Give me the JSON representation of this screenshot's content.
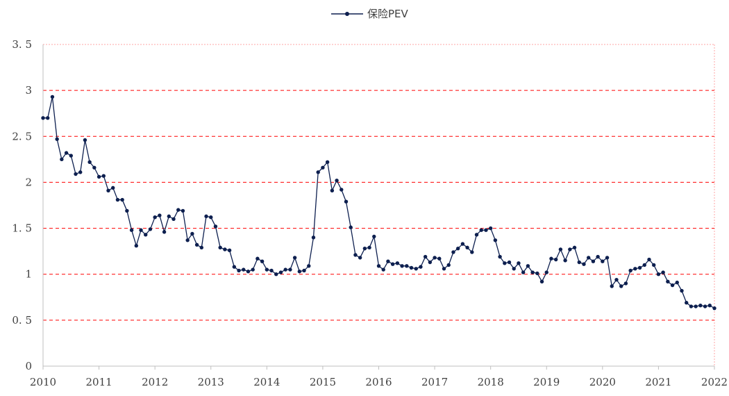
{
  "chart_data": {
    "type": "line",
    "title": "",
    "xlabel": "",
    "ylabel": "",
    "ylim": [
      0,
      3.5
    ],
    "xlim": [
      "2010-01",
      "2022-01"
    ],
    "y_ticks": [
      "0",
      "0. 5",
      "1",
      "1. 5",
      "2",
      "2. 5",
      "3",
      "3. 5"
    ],
    "x_ticks": [
      "2010",
      "2011",
      "2012",
      "2013",
      "2014",
      "2015",
      "2016",
      "2017",
      "2018",
      "2019",
      "2020",
      "2021",
      "2022"
    ],
    "grid": "horizontal dashed",
    "legend_position": "top-center",
    "colors": {
      "series": "#0d1f4f",
      "grid": "#ff0000",
      "axis": "#bfbfbf"
    },
    "series": [
      {
        "name": "保险PEV",
        "x": [
          "2010-01",
          "2010-02",
          "2010-03",
          "2010-04",
          "2010-05",
          "2010-06",
          "2010-07",
          "2010-08",
          "2010-09",
          "2010-10",
          "2010-11",
          "2010-12",
          "2011-01",
          "2011-02",
          "2011-03",
          "2011-04",
          "2011-05",
          "2011-06",
          "2011-07",
          "2011-08",
          "2011-09",
          "2011-10",
          "2011-11",
          "2011-12",
          "2012-01",
          "2012-02",
          "2012-03",
          "2012-04",
          "2012-05",
          "2012-06",
          "2012-07",
          "2012-08",
          "2012-09",
          "2012-10",
          "2012-11",
          "2012-12",
          "2013-01",
          "2013-02",
          "2013-03",
          "2013-04",
          "2013-05",
          "2013-06",
          "2013-07",
          "2013-08",
          "2013-09",
          "2013-10",
          "2013-11",
          "2013-12",
          "2014-01",
          "2014-02",
          "2014-03",
          "2014-04",
          "2014-05",
          "2014-06",
          "2014-07",
          "2014-08",
          "2014-09",
          "2014-10",
          "2014-11",
          "2014-12",
          "2015-01",
          "2015-02",
          "2015-03",
          "2015-04",
          "2015-05",
          "2015-06",
          "2015-07",
          "2015-08",
          "2015-09",
          "2015-10",
          "2015-11",
          "2015-12",
          "2016-01",
          "2016-02",
          "2016-03",
          "2016-04",
          "2016-05",
          "2016-06",
          "2016-07",
          "2016-08",
          "2016-09",
          "2016-10",
          "2016-11",
          "2016-12",
          "2017-01",
          "2017-02",
          "2017-03",
          "2017-04",
          "2017-05",
          "2017-06",
          "2017-07",
          "2017-08",
          "2017-09",
          "2017-10",
          "2017-11",
          "2017-12",
          "2018-01",
          "2018-02",
          "2018-03",
          "2018-04",
          "2018-05",
          "2018-06",
          "2018-07",
          "2018-08",
          "2018-09",
          "2018-10",
          "2018-11",
          "2018-12",
          "2019-01",
          "2019-02",
          "2019-03",
          "2019-04",
          "2019-05",
          "2019-06",
          "2019-07",
          "2019-08",
          "2019-09",
          "2019-10",
          "2019-11",
          "2019-12",
          "2020-01",
          "2020-02",
          "2020-03",
          "2020-04",
          "2020-05",
          "2020-06",
          "2020-07",
          "2020-08",
          "2020-09",
          "2020-10",
          "2020-11",
          "2020-12",
          "2021-01",
          "2021-02",
          "2021-03",
          "2021-04",
          "2021-05",
          "2021-06",
          "2021-07",
          "2021-08",
          "2021-09",
          "2021-10",
          "2021-11",
          "2021-12",
          "2022-01"
        ],
        "values": [
          2.7,
          2.7,
          2.93,
          2.47,
          2.25,
          2.32,
          2.29,
          2.09,
          2.11,
          2.46,
          2.22,
          2.16,
          2.06,
          2.07,
          1.91,
          1.94,
          1.81,
          1.81,
          1.69,
          1.48,
          1.31,
          1.48,
          1.43,
          1.49,
          1.62,
          1.64,
          1.46,
          1.63,
          1.6,
          1.7,
          1.69,
          1.37,
          1.44,
          1.32,
          1.29,
          1.63,
          1.62,
          1.52,
          1.29,
          1.27,
          1.26,
          1.08,
          1.04,
          1.05,
          1.03,
          1.05,
          1.17,
          1.14,
          1.05,
          1.04,
          1.0,
          1.02,
          1.05,
          1.05,
          1.18,
          1.03,
          1.04,
          1.09,
          1.4,
          2.11,
          2.16,
          2.22,
          1.91,
          2.02,
          1.92,
          1.79,
          1.51,
          1.21,
          1.18,
          1.28,
          1.29,
          1.41,
          1.09,
          1.05,
          1.14,
          1.11,
          1.12,
          1.09,
          1.09,
          1.07,
          1.06,
          1.08,
          1.19,
          1.13,
          1.18,
          1.17,
          1.06,
          1.1,
          1.24,
          1.28,
          1.33,
          1.29,
          1.24,
          1.43,
          1.48,
          1.48,
          1.5,
          1.37,
          1.19,
          1.12,
          1.13,
          1.06,
          1.12,
          1.02,
          1.09,
          1.02,
          1.01,
          0.92,
          1.02,
          1.17,
          1.16,
          1.27,
          1.15,
          1.27,
          1.29,
          1.13,
          1.11,
          1.18,
          1.14,
          1.19,
          1.14,
          1.18,
          0.87,
          0.94,
          0.87,
          0.9,
          1.04,
          1.06,
          1.07,
          1.1,
          1.16,
          1.1,
          1.0,
          1.02,
          0.92,
          0.88,
          0.91,
          0.82,
          0.69,
          0.65,
          0.65,
          0.66,
          0.65,
          0.66,
          0.63
        ]
      }
    ]
  }
}
